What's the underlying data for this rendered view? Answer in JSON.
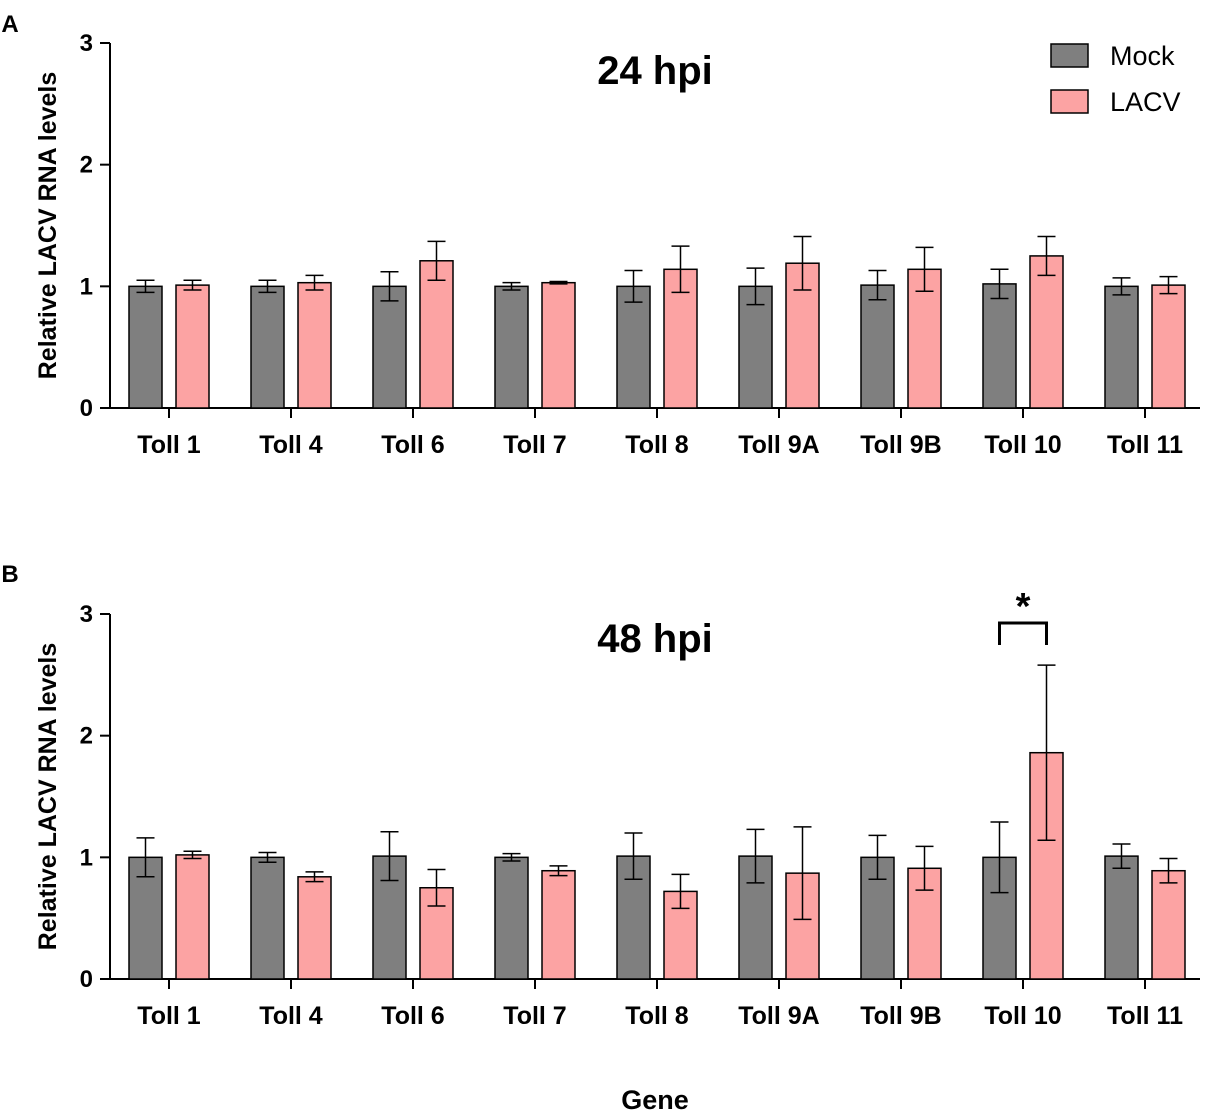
{
  "figure": {
    "x_axis_title": "Gene",
    "legend": [
      {
        "name": "Mock",
        "color": "#7f7f7f"
      },
      {
        "name": "LACV",
        "color": "#fca3a3"
      }
    ]
  },
  "chart_data": [
    {
      "type": "bar",
      "panel_label": "A",
      "title": "24 hpi",
      "xlabel": "Gene",
      "ylabel": "Relative LACV RNA levels",
      "ylim": [
        0,
        3
      ],
      "yticks": [
        "0",
        "1",
        "2",
        "3"
      ],
      "categories": [
        "Toll 1",
        "Toll 4",
        "Toll 6",
        "Toll 7",
        "Toll 8",
        "Toll 9A",
        "Toll 9B",
        "Toll 10",
        "Toll 11"
      ],
      "series": [
        {
          "name": "Mock",
          "color": "#7f7f7f",
          "values": [
            1.0,
            1.0,
            1.0,
            1.0,
            1.0,
            1.0,
            1.01,
            1.02,
            1.0
          ],
          "errors": [
            0.05,
            0.05,
            0.12,
            0.03,
            0.13,
            0.15,
            0.12,
            0.12,
            0.07
          ]
        },
        {
          "name": "LACV",
          "color": "#fca3a3",
          "values": [
            1.01,
            1.03,
            1.21,
            1.03,
            1.14,
            1.19,
            1.14,
            1.25,
            1.01
          ],
          "errors": [
            0.04,
            0.06,
            0.16,
            0.01,
            0.19,
            0.22,
            0.18,
            0.16,
            0.07
          ]
        }
      ]
    },
    {
      "type": "bar",
      "panel_label": "B",
      "title": "48 hpi",
      "xlabel": "Gene",
      "ylabel": "Relative LACV RNA levels",
      "ylim": [
        0,
        3
      ],
      "yticks": [
        "0",
        "1",
        "2",
        "3"
      ],
      "categories": [
        "Toll 1",
        "Toll 4",
        "Toll 6",
        "Toll 7",
        "Toll 8",
        "Toll 9A",
        "Toll 9B",
        "Toll 10",
        "Toll 11"
      ],
      "series": [
        {
          "name": "Mock",
          "color": "#7f7f7f",
          "values": [
            1.0,
            1.0,
            1.01,
            1.0,
            1.01,
            1.01,
            1.0,
            1.0,
            1.01
          ],
          "errors": [
            0.16,
            0.04,
            0.2,
            0.03,
            0.19,
            0.22,
            0.18,
            0.29,
            0.1
          ]
        },
        {
          "name": "LACV",
          "color": "#fca3a3",
          "values": [
            1.02,
            0.84,
            0.75,
            0.89,
            0.72,
            0.87,
            0.91,
            1.86,
            0.89
          ],
          "errors": [
            0.03,
            0.04,
            0.15,
            0.04,
            0.14,
            0.38,
            0.18,
            0.72,
            0.1
          ]
        }
      ],
      "annotations": [
        {
          "text": "*",
          "category": "Toll 10",
          "type": "significance-bracket"
        }
      ]
    }
  ]
}
